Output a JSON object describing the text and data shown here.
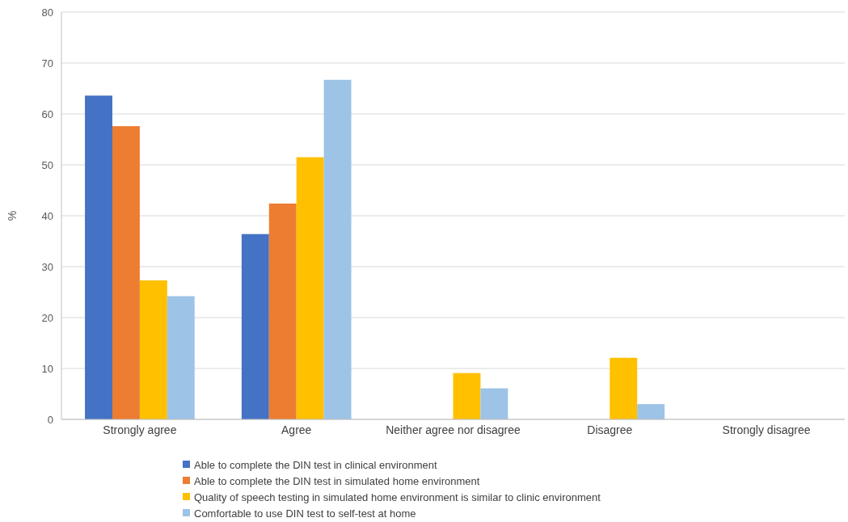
{
  "chart_data": {
    "type": "bar",
    "ylabel": "%",
    "categories": [
      "Strongly agree",
      "Agree",
      "Neither agree nor disagree",
      "Disagree",
      "Strongly disagree"
    ],
    "series": [
      {
        "name": "Able to complete the DIN test in clinical environment",
        "color": "#4472c4",
        "values": [
          63.6,
          36.4,
          0,
          0,
          0
        ]
      },
      {
        "name": "Able to complete the DIN test in simulated home environment",
        "color": "#ed7d31",
        "values": [
          57.6,
          42.4,
          0,
          0,
          0
        ]
      },
      {
        "name": "Quality of speech testing in simulated home environment is similar to clinic environment",
        "color": "#ffc000",
        "values": [
          27.3,
          51.5,
          9.1,
          12.1,
          0
        ]
      },
      {
        "name": "Comfortable to use DIN test to self-test at home",
        "color": "#9dc3e6",
        "values": [
          24.2,
          66.7,
          6.1,
          3.0,
          0
        ]
      }
    ],
    "ylim": [
      0,
      80
    ],
    "yticks": [
      0,
      10,
      20,
      30,
      40,
      50,
      60,
      70,
      80
    ],
    "grid": "y",
    "legend": "bottom"
  }
}
